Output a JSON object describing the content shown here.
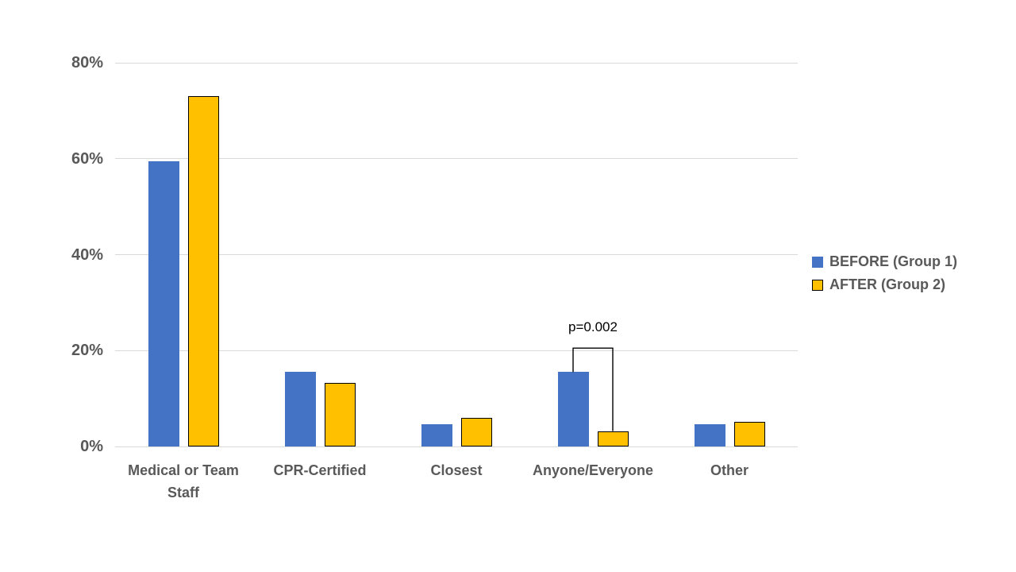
{
  "chart_data": {
    "type": "bar",
    "title": "",
    "xlabel": "",
    "ylabel": "",
    "categories": [
      "Medical or Team Staff",
      "CPR-Certified",
      "Closest",
      "Anyone/Everyone",
      "Other"
    ],
    "series": [
      {
        "name": "BEFORE (Group 1)",
        "color": "#4472C4",
        "border_color": "none",
        "values": [
          59.5,
          15.5,
          4.7,
          15.5,
          4.7
        ]
      },
      {
        "name": "AFTER (Group 2)",
        "color": "#FFC000",
        "border_color": "#000000",
        "values": [
          73,
          13.2,
          6,
          3.2,
          5.1
        ]
      }
    ],
    "ylim": [
      0,
      80
    ],
    "yticks": {
      "values": [
        0,
        20,
        40,
        60,
        80
      ],
      "labels": [
        "0%",
        "20%",
        "40%",
        "60%",
        "80%"
      ]
    },
    "grid": true,
    "legend_position": "right",
    "annotation": {
      "text": "p=0.002",
      "category_index": 3,
      "connects_series": [
        "BEFORE (Group 1)",
        "AFTER (Group 2)"
      ],
      "bracket_top_value": 20.5
    }
  },
  "colors": {
    "gridline": "#D9D9D9",
    "axis_label": "#595959",
    "annotation_text": "#000000",
    "bracket_line": "#000000",
    "background": "#FFFFFF"
  }
}
